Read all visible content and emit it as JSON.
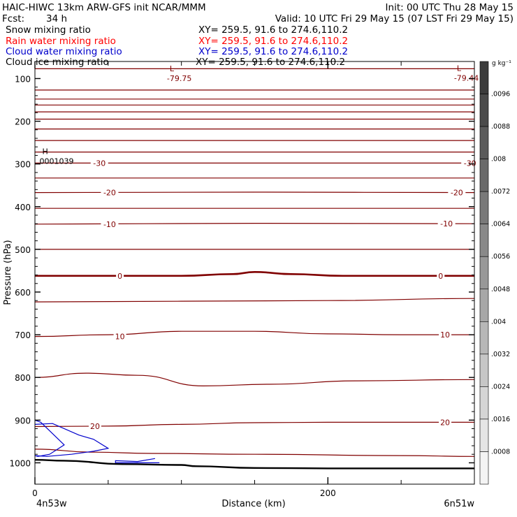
{
  "header": {
    "title": "HAIC-HIWC 13km ARW-GFS init    NCAR/MMM",
    "init": "Init: 00 UTC Thu 28 May 15",
    "fcst_label": "Fcst:",
    "fcst_value": "34 h",
    "valid": "Valid: 10 UTC Fri 29 May 15 (07 LST Fri 29 May 15)"
  },
  "legend": [
    {
      "label": "Snow mixing ratio",
      "xy": "XY= 259.5, 91.6 to 274.6,110.2",
      "color": "#000000"
    },
    {
      "label": "Rain water mixing ratio",
      "xy": "XY= 259.5, 91.6 to 274.6,110.2",
      "color": "#ff0000"
    },
    {
      "label": "Cloud water mixing ratio",
      "xy": "XY= 259.5, 91.6 to 274.6,110.2",
      "color": "#0000cc"
    },
    {
      "label": "Cloud ice mixing ratio",
      "xy": "XY= 259.5, 91.6 to 274.6,110.2",
      "color": "#000000"
    }
  ],
  "colors": {
    "isotherm": "#800000",
    "cloud_water": "#0000cc",
    "terrain": "#000000",
    "colorbar_top": "#3c3c3c",
    "colorbar_bottom": "#f4f4f4"
  },
  "chart_data": {
    "type": "contour",
    "xlabel": "Distance (km)",
    "ylabel": "Pressure (hPa)",
    "xlim": [
      0,
      300
    ],
    "ylim": [
      1050,
      60
    ],
    "x_ticks": [
      0,
      200
    ],
    "x_tick_labels": [
      "0",
      "200"
    ],
    "y_ticks": [
      100,
      200,
      300,
      400,
      500,
      600,
      700,
      800,
      900,
      1000
    ],
    "y_tick_labels": [
      "100",
      "200",
      "300",
      "400",
      "500",
      "600",
      "700",
      "800",
      "900",
      "1000"
    ],
    "endpoint_labels": {
      "left": "4n53w",
      "right": "6n51w"
    },
    "isotherms": [
      {
        "level": null,
        "x": [
          0,
          300
        ],
        "p": [
          77,
          77
        ]
      },
      {
        "level": null,
        "x": [
          0,
          300
        ],
        "p": [
          127,
          127
        ]
      },
      {
        "level": null,
        "x": [
          0,
          300
        ],
        "p": [
          148,
          148
        ]
      },
      {
        "level": null,
        "x": [
          0,
          300
        ],
        "p": [
          162,
          162
        ]
      },
      {
        "level": null,
        "x": [
          0,
          300
        ],
        "p": [
          178,
          178
        ]
      },
      {
        "level": null,
        "x": [
          0,
          300
        ],
        "p": [
          195,
          195
        ]
      },
      {
        "level": null,
        "x": [
          0,
          300
        ],
        "p": [
          218,
          218
        ]
      },
      {
        "level": null,
        "x": [
          0,
          300
        ],
        "p": [
          245,
          245
        ]
      },
      {
        "level": null,
        "x": [
          0,
          300
        ],
        "p": [
          272,
          272
        ]
      },
      {
        "level": -30,
        "x": [
          0,
          150,
          300
        ],
        "p": [
          298,
          298,
          298
        ]
      },
      {
        "level": null,
        "x": [
          0,
          300
        ],
        "p": [
          333,
          333
        ]
      },
      {
        "level": -20,
        "x": [
          0,
          150,
          300
        ],
        "p": [
          367,
          366,
          367
        ]
      },
      {
        "level": null,
        "x": [
          0,
          300
        ],
        "p": [
          404,
          404
        ]
      },
      {
        "level": -10,
        "x": [
          0,
          150,
          300
        ],
        "p": [
          441,
          439,
          440
        ]
      },
      {
        "level": null,
        "x": [
          0,
          300
        ],
        "p": [
          500,
          500
        ]
      },
      {
        "level": 0,
        "x": [
          0,
          100,
          135,
          150,
          175,
          210,
          300
        ],
        "p": [
          562,
          562,
          558,
          553,
          558,
          562,
          562
        ]
      },
      {
        "level": null,
        "x": [
          0,
          200,
          300
        ],
        "p": [
          623,
          620,
          615
        ]
      },
      {
        "level": 10,
        "x": [
          0,
          50,
          100,
          150,
          200,
          250,
          300
        ],
        "p": [
          704,
          700,
          692,
          692,
          698,
          700,
          700
        ]
      },
      {
        "level": null,
        "x": [
          0,
          35,
          70,
          115,
          160,
          220,
          300
        ],
        "p": [
          800,
          790,
          795,
          820,
          816,
          808,
          805
        ]
      },
      {
        "level": 20,
        "x": [
          0,
          50,
          100,
          150,
          200,
          250,
          300
        ],
        "p": [
          915,
          914,
          910,
          906,
          905,
          905,
          905
        ]
      },
      {
        "level": null,
        "x": [
          0,
          40,
          80,
          150,
          250,
          300
        ],
        "p": [
          968,
          975,
          978,
          980,
          983,
          985
        ]
      }
    ],
    "contour_labels": [
      {
        "text": "-30",
        "x": 44,
        "p": 298
      },
      {
        "text": "-30",
        "x": 297,
        "p": 298
      },
      {
        "text": "-20",
        "x": 51,
        "p": 367
      },
      {
        "text": "-20",
        "x": 288,
        "p": 367
      },
      {
        "text": "-10",
        "x": 51,
        "p": 441
      },
      {
        "text": "-10",
        "x": 281,
        "p": 440
      },
      {
        "text": "0",
        "x": 58,
        "p": 562
      },
      {
        "text": "0",
        "x": 277,
        "p": 562
      },
      {
        "text": "10",
        "x": 58,
        "p": 704
      },
      {
        "text": "10",
        "x": 280,
        "p": 700
      },
      {
        "text": "20",
        "x": 41,
        "p": 914
      },
      {
        "text": "20",
        "x": 280,
        "p": 905
      }
    ],
    "extrema": [
      {
        "type": "L",
        "value": "-79.75",
        "x": 92,
        "p": 93
      },
      {
        "type": "L",
        "value": "-79.44",
        "x": 288,
        "p": 92
      },
      {
        "type": "H",
        "value": "0001039",
        "x": 5,
        "p": 287
      }
    ],
    "cloud_water_contours": [
      {
        "x": [
          0,
          4,
          10,
          20,
          10,
          2,
          0
        ],
        "p": [
          900,
          905,
          925,
          958,
          980,
          985,
          983
        ]
      },
      {
        "x": [
          0,
          12,
          30,
          40,
          50,
          40,
          25,
          8,
          0
        ],
        "p": [
          910,
          908,
          935,
          945,
          966,
          973,
          980,
          985,
          983
        ]
      },
      {
        "x": [
          82,
          70,
          55,
          55,
          80,
          85
        ],
        "p": [
          990,
          997,
          995,
          1000,
          1000,
          1000
        ]
      }
    ],
    "terrain": {
      "x": [
        0,
        20,
        60,
        100,
        110,
        150,
        200,
        300
      ],
      "p": [
        993,
        995,
        1003,
        1005,
        1008,
        1012,
        1013,
        1013
      ]
    },
    "colorbar": {
      "units": "g kg⁻¹",
      "levels": [
        ".0008",
        ".0016",
        ".0024",
        ".0032",
        ".004",
        ".0048",
        ".0056",
        ".0064",
        ".0072",
        ".008",
        ".0088",
        ".0096"
      ]
    }
  }
}
